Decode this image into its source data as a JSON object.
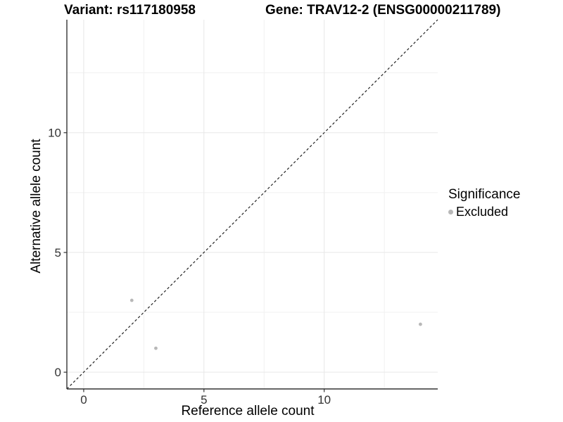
{
  "title": {
    "variant": "Variant: rs117180958",
    "gene": "Gene: TRAV12-2 (ENSG00000211789)"
  },
  "legend": {
    "title": "Significance",
    "items": [
      {
        "label": "Excluded",
        "color": "#b8b8b8"
      }
    ]
  },
  "chart_data": {
    "type": "scatter",
    "title": "Variant: rs117180958 | Gene: TRAV12-2 (ENSG00000211789)",
    "xlabel": "Reference allele count",
    "ylabel": "Alternative allele count",
    "xlim": [
      -0.7,
      14.72
    ],
    "ylim": [
      -0.7,
      14.72
    ],
    "x_ticks": [
      0,
      5,
      10
    ],
    "y_ticks": [
      0,
      5,
      10
    ],
    "x_minor_ticks": [
      2.5,
      7.5,
      12.5
    ],
    "y_minor_ticks": [
      2.5,
      7.5,
      12.5
    ],
    "grid": "major+minor",
    "legend_position": "right",
    "reference_line": {
      "type": "identity y=x",
      "style": "dashed",
      "color": "#222222"
    },
    "series": [
      {
        "name": "Excluded",
        "color": "#b8b8b8",
        "points": [
          [
            2,
            3
          ],
          [
            3,
            1
          ],
          [
            14,
            2
          ]
        ]
      }
    ],
    "colors": {
      "grid_major": "#e7e7e7",
      "grid_minor": "#f1f1f1",
      "axis_line": "#333333",
      "tick_label": "#333333",
      "background": "#ffffff"
    }
  }
}
